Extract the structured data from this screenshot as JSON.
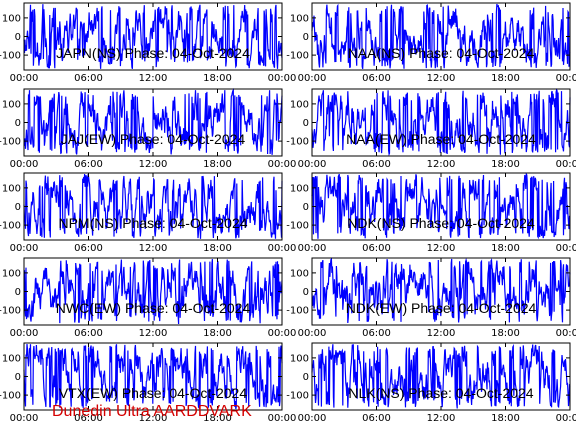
{
  "figure": {
    "footer": "Dunedin Ultra AARDDVARK",
    "trace_color": "#0000ff",
    "footer_color": "#d40000"
  },
  "chart_data": [
    {
      "type": "line",
      "title": "JAPN(NS) Phase: 04-Oct-2024",
      "x_ticks": [
        "00:00",
        "06:00",
        "12:00",
        "18:00",
        "00:00"
      ],
      "y_ticks": [
        "100",
        "0",
        "-100"
      ],
      "ylim": [
        -180,
        180
      ],
      "series": [
        {
          "values": []
        }
      ]
    },
    {
      "type": "line",
      "title": "NAA(NS) Phase: 04-Oct-2024",
      "x_ticks": [
        "00:00",
        "06:00",
        "12:00",
        "18:00",
        "00:00"
      ],
      "y_ticks": [
        "100",
        "0",
        "-100"
      ],
      "ylim": [
        -180,
        180
      ],
      "series": [
        {
          "values": []
        }
      ]
    },
    {
      "type": "line",
      "title": "JAJ(EW) Phase: 04-Oct-2024",
      "x_ticks": [
        "00:00",
        "06:00",
        "12:00",
        "18:00",
        "00:00"
      ],
      "y_ticks": [
        "100",
        "0",
        "-100"
      ],
      "ylim": [
        -180,
        180
      ],
      "series": [
        {
          "values": []
        }
      ]
    },
    {
      "type": "line",
      "title": "NAA(EW) Phase: 04-Oct-2024",
      "x_ticks": [
        "00:00",
        "06:00",
        "12:00",
        "18:00",
        "00:00"
      ],
      "y_ticks": [
        "100",
        "0",
        "-100"
      ],
      "ylim": [
        -180,
        180
      ],
      "series": [
        {
          "values": []
        }
      ]
    },
    {
      "type": "line",
      "title": "NPM(NS) Phase: 04-Oct-2024",
      "x_ticks": [
        "00:00",
        "06:00",
        "12:00",
        "18:00",
        "00:00"
      ],
      "y_ticks": [
        "100",
        "0",
        "-100"
      ],
      "ylim": [
        -180,
        180
      ],
      "series": [
        {
          "values": []
        }
      ]
    },
    {
      "type": "line",
      "title": "NDK(NS) Phase: 04-Oct-2024",
      "x_ticks": [
        "00:00",
        "06:00",
        "12:00",
        "18:00",
        "00:00"
      ],
      "y_ticks": [
        "100",
        "0",
        "-100"
      ],
      "ylim": [
        -180,
        180
      ],
      "series": [
        {
          "values": []
        }
      ]
    },
    {
      "type": "line",
      "title": "NWC(EW) Phase: 04-Oct-2024",
      "x_ticks": [
        "00:00",
        "06:00",
        "12:00",
        "18:00",
        "00:00"
      ],
      "y_ticks": [
        "100",
        "0",
        "-100"
      ],
      "ylim": [
        -180,
        180
      ],
      "series": [
        {
          "values": []
        }
      ]
    },
    {
      "type": "line",
      "title": "NDK(EW) Phase: 04-Oct-2024",
      "x_ticks": [
        "00:00",
        "06:00",
        "12:00",
        "18:00",
        "00:00"
      ],
      "y_ticks": [
        "100",
        "0",
        "-100"
      ],
      "ylim": [
        -180,
        180
      ],
      "series": [
        {
          "values": []
        }
      ]
    },
    {
      "type": "line",
      "title": "VTX(EW) Phase: 04-Oct-2024",
      "x_ticks": [
        "00:00",
        "06:00",
        "12:00",
        "18:00",
        "00:00"
      ],
      "y_ticks": [
        "100",
        "0",
        "-100"
      ],
      "ylim": [
        -180,
        180
      ],
      "series": [
        {
          "values": []
        }
      ]
    },
    {
      "type": "line",
      "title": "NLK(NS) Phase: 04-Oct-2024",
      "x_ticks": [
        "00:00",
        "06:00",
        "12:00",
        "18:00",
        "00:00"
      ],
      "y_ticks": [
        "100",
        "0",
        "-100"
      ],
      "ylim": [
        -180,
        180
      ],
      "series": [
        {
          "values": []
        }
      ]
    }
  ]
}
